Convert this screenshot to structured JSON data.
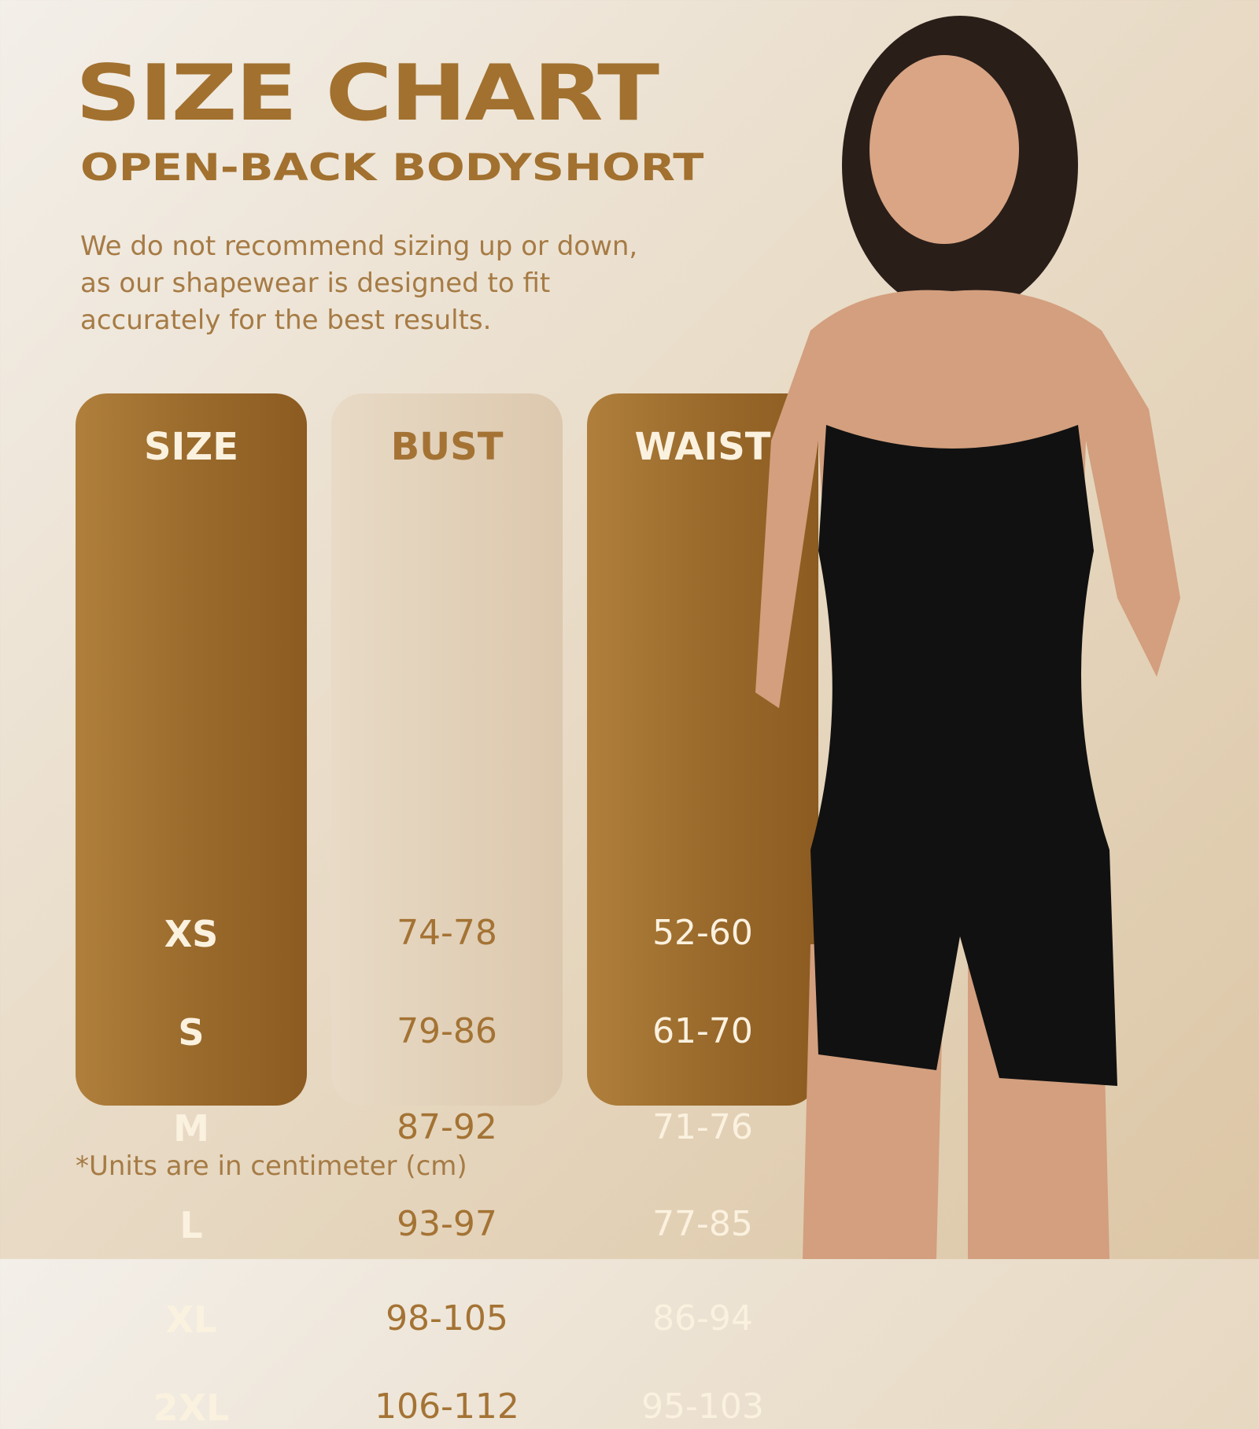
{
  "title": "SIZE CHART",
  "subtitle": "OPEN-BACK BODYSHORT",
  "note": "We do not recommend sizing up or down, as our shapewear is designed to fit accurately for the best results.",
  "table": {
    "columns": [
      {
        "header": "SIZE",
        "values": [
          "XS",
          "S",
          "M",
          "L",
          "XL",
          "2XL"
        ]
      },
      {
        "header": "BUST",
        "values": [
          "74-78",
          "79-86",
          "87-92",
          "93-97",
          "98-105",
          "106-112"
        ]
      },
      {
        "header": "WAIST",
        "values": [
          "52-60",
          "61-70",
          "71-76",
          "77-85",
          "86-94",
          "95-103"
        ]
      }
    ]
  },
  "units_note": "*Units are in centimeter (cm)",
  "colors": {
    "accent": "#a2712f",
    "dark_column": "#9a6b2c",
    "light_column": "#e2d1b9",
    "garment": "#111111"
  }
}
